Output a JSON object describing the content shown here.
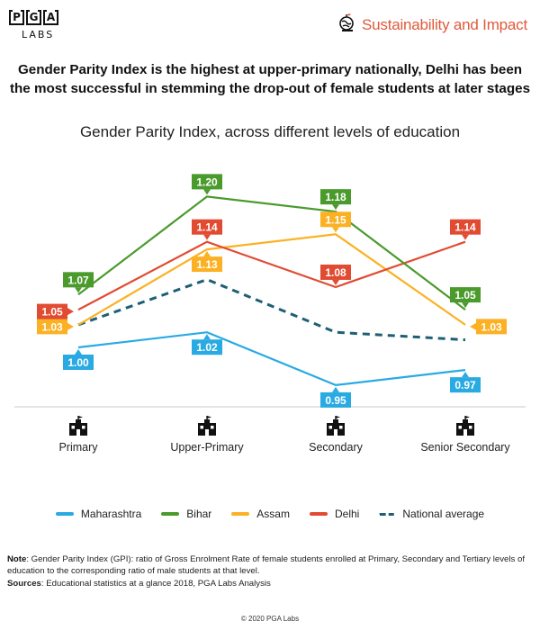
{
  "header": {
    "logo_letters": [
      "P",
      "G",
      "A"
    ],
    "logo_sub": "LABS",
    "brand_icon": "globe-plant-icon",
    "brand_text": "Sustainability and Impact"
  },
  "headline": {
    "line1": "Gender Parity Index is the highest at upper-primary nationally, Delhi has been",
    "line2": "the most successful in stemming the drop-out of female students at later stages"
  },
  "chart_data": {
    "type": "line",
    "title": "Gender Parity Index, across different levels of education",
    "xlabel": "",
    "ylabel": "",
    "categories": [
      "Primary",
      "Upper-Primary",
      "Secondary",
      "Senior Secondary"
    ],
    "category_icon": "school-building-icon",
    "ylim": [
      0.93,
      1.22
    ],
    "grid": false,
    "legend_position": "bottom",
    "series": [
      {
        "name": "Maharashtra",
        "color": "#29aae2",
        "dashed": false,
        "labeled": true,
        "label_side": [
          "below",
          "below",
          "below",
          "below"
        ],
        "values": [
          1.0,
          1.02,
          0.95,
          0.97
        ]
      },
      {
        "name": "Bihar",
        "color": "#4a9a2c",
        "dashed": false,
        "labeled": true,
        "label_side": [
          "above",
          "above",
          "above",
          "above"
        ],
        "values": [
          1.07,
          1.2,
          1.18,
          1.05
        ]
      },
      {
        "name": "Assam",
        "color": "#fbb123",
        "dashed": false,
        "labeled": true,
        "label_side": [
          "left",
          "below",
          "above",
          "right"
        ],
        "values": [
          1.03,
          1.13,
          1.15,
          1.03
        ]
      },
      {
        "name": "Delhi",
        "color": "#e14b32",
        "dashed": false,
        "labeled": true,
        "label_side": [
          "left",
          "above",
          "above",
          "above"
        ],
        "values": [
          1.05,
          1.14,
          1.08,
          1.14
        ]
      },
      {
        "name": "National average",
        "color": "#1e5f74",
        "dashed": true,
        "labeled": false,
        "label_side": [],
        "values": [
          1.03,
          1.09,
          1.02,
          1.01
        ]
      }
    ]
  },
  "footer": {
    "note_label": "Note",
    "note_text": ": Gender Parity Index (GPI): ratio of Gross Enrolment Rate of female students enrolled at Primary, Secondary and Tertiary levels of education to the corresponding ratio of male students at that level.",
    "sources_label": "Sources",
    "sources_text": ": Educational statistics at a glance 2018, PGA Labs Analysis",
    "copyright": "© 2020 PGA Labs"
  }
}
